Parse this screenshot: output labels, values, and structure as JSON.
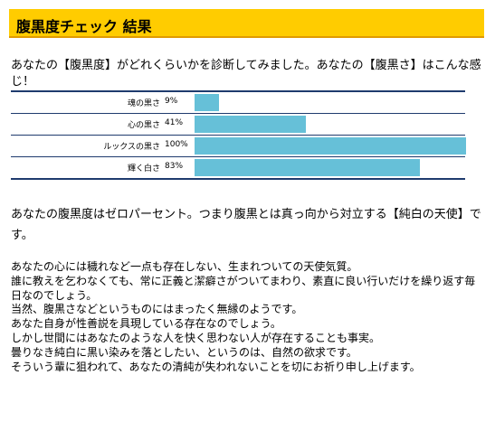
{
  "header": {
    "title": "腹黒度チェック 結果"
  },
  "intro": "あなたの【腹黒度】がどれくらいかを診断してみました。あなたの【腹黒さ】はこんな感じ！",
  "chart_data": {
    "type": "bar",
    "orientation": "horizontal",
    "categories": [
      "魂の黒さ",
      "心の黒さ",
      "ルックスの黒さ",
      "輝く白さ"
    ],
    "values": [
      9,
      41,
      100,
      83
    ],
    "value_labels": [
      "9%",
      "41%",
      "100%",
      "83%"
    ],
    "xlim": [
      0,
      100
    ],
    "colors": {
      "bar": "#66c0d8",
      "rule": "#1f3b6e"
    }
  },
  "summary": "あなたの腹黒度はゼロパーセント。つまり腹黒とは真っ向から対立する【純白の天使】です。",
  "detail_lines": [
    "あなたの心には穢れなど一点も存在しない、生まれついての天使気質。",
    "誰に教えを乞わなくても、常に正義と潔癖さがついてまわり、素直に良い行いだけを繰り返す毎日なのでしょう。",
    "当然、腹黒さなどというものにはまったく無縁のようです。",
    "あなた自身が性善説を具現している存在なのでしょう。",
    "しかし世間にはあなたのような人を快く思わない人が存在することも事実。",
    "曇りなき純白に黒い染みを落としたい、というのは、自然の欲求です。",
    "そういう輩に狙われて、あなたの清純が失われないことを切にお祈り申し上げます。"
  ],
  "theme": {
    "title_bg": "#ffcc00",
    "title_border": "#e09a00"
  }
}
